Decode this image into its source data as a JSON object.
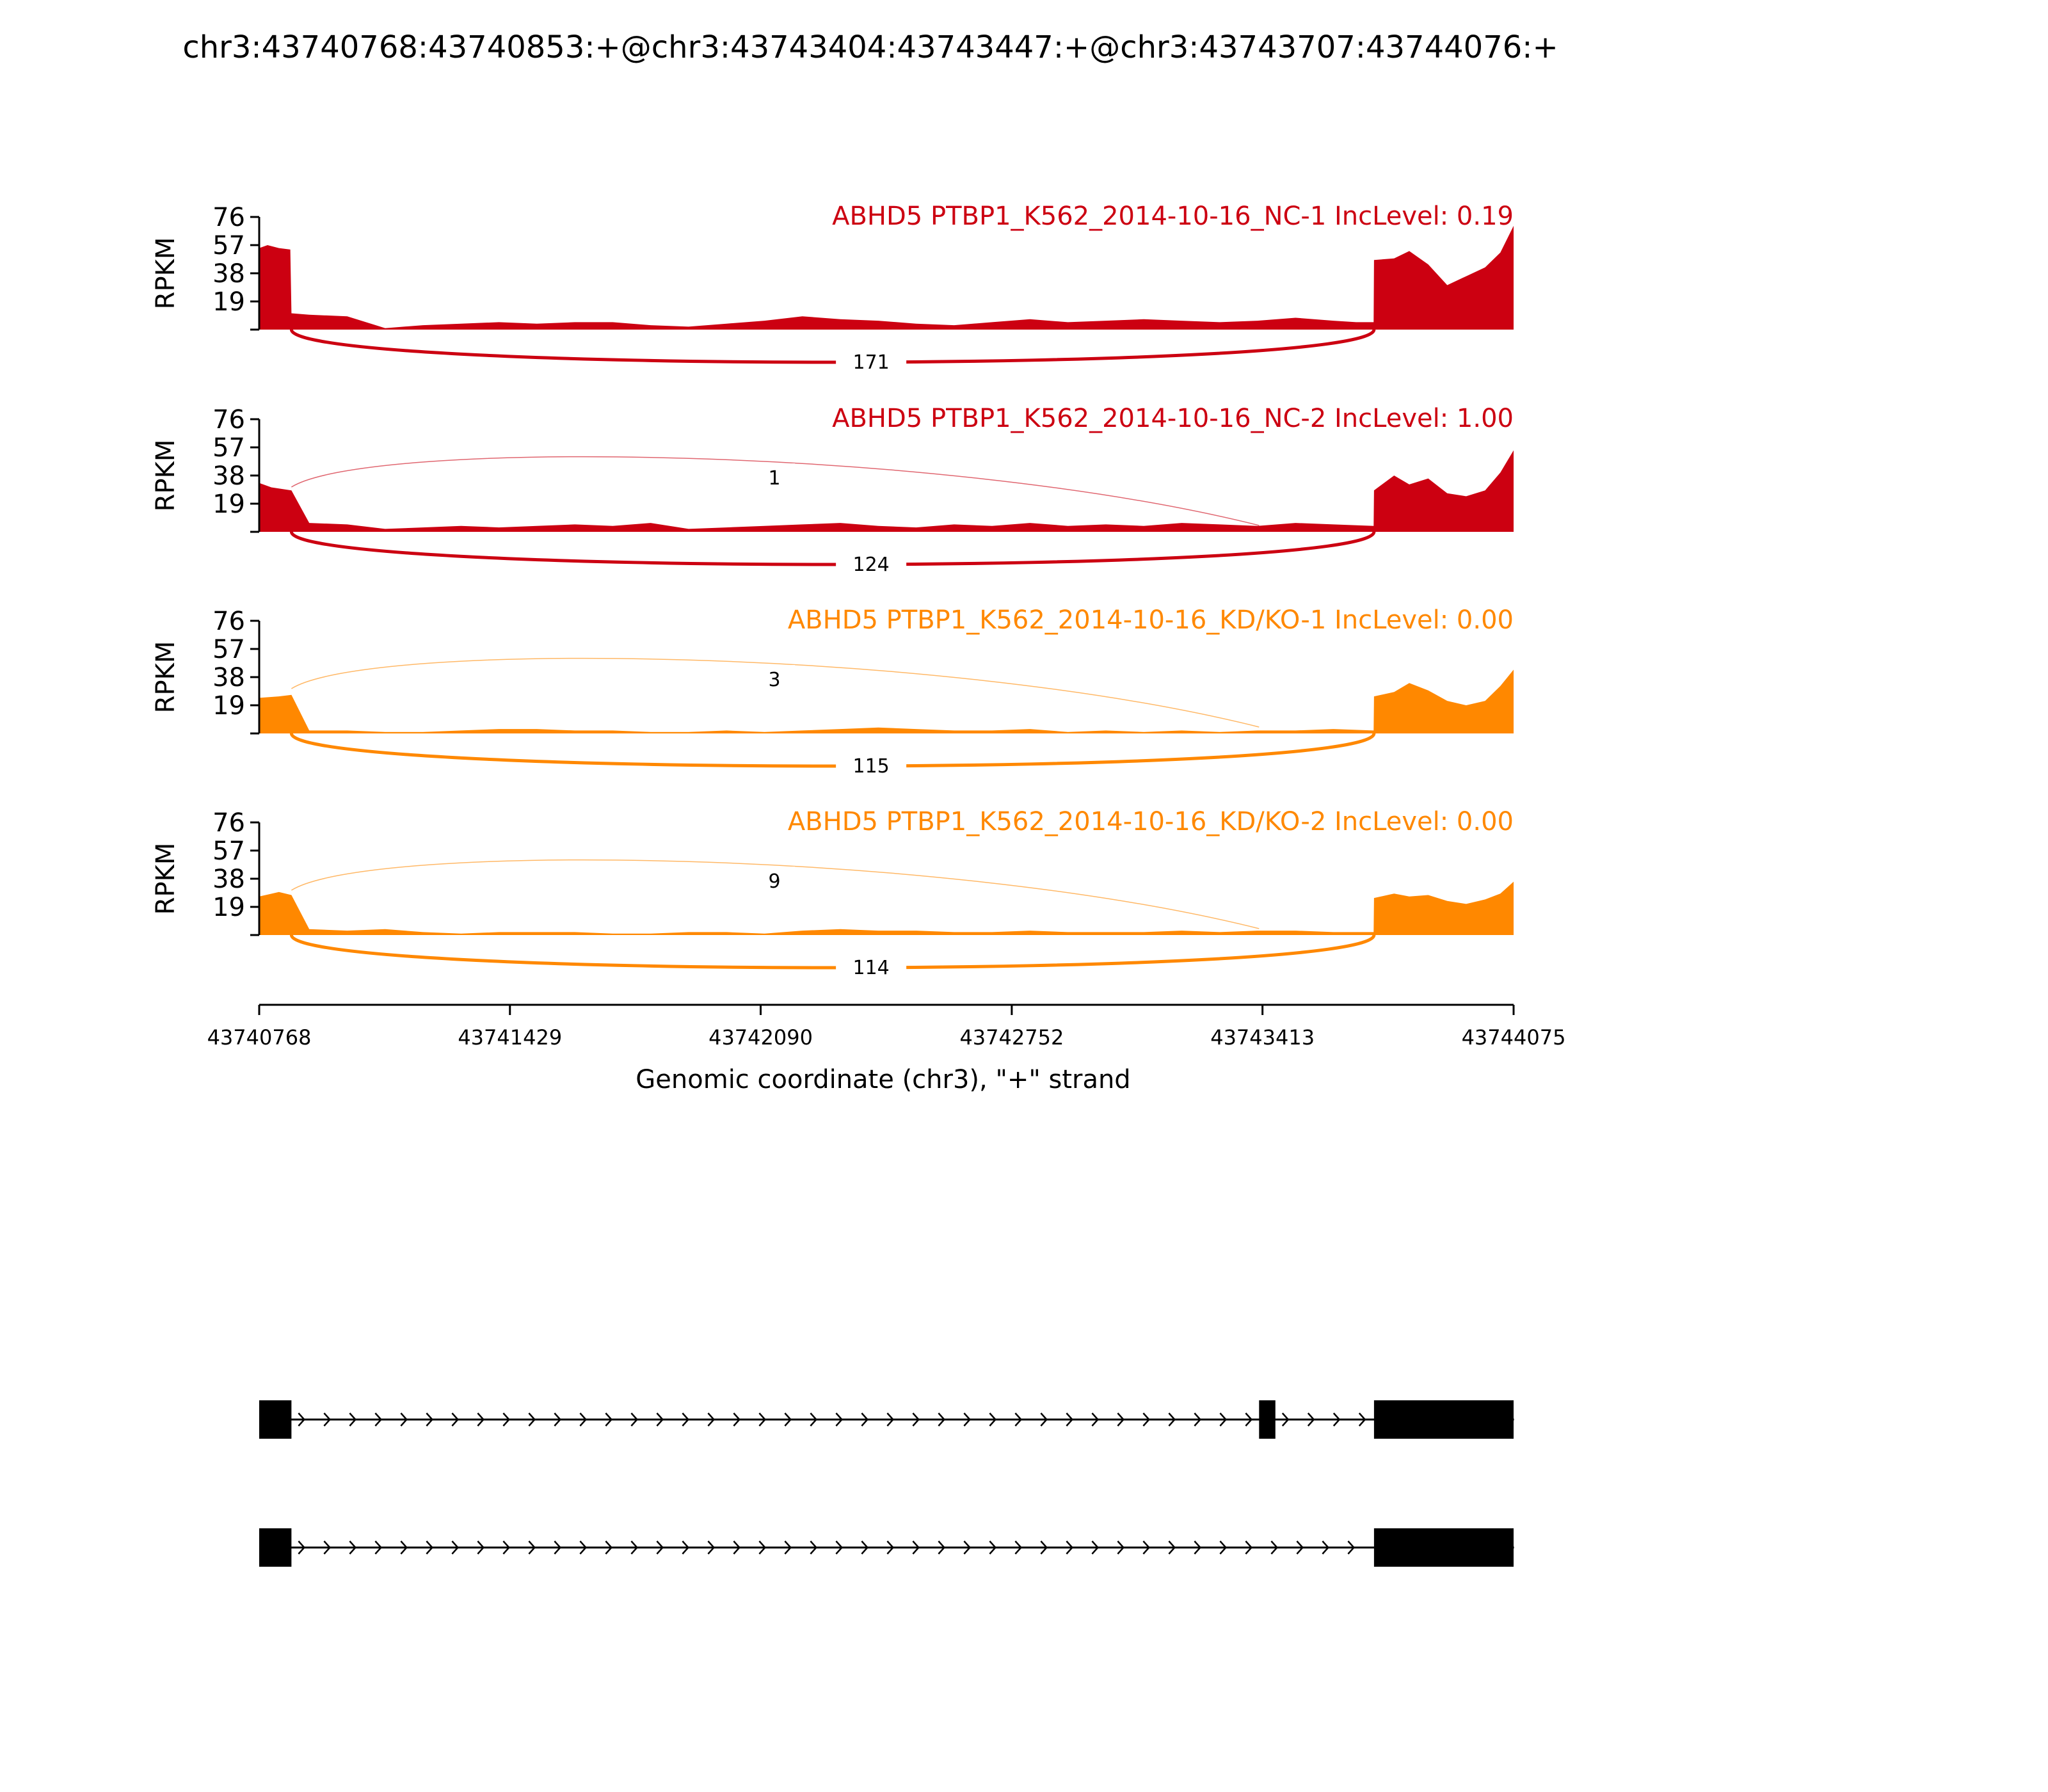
{
  "chart_data": {
    "type": "area",
    "title": "chr3:43740768:43740853:+@chr3:43743404:43743447:+@chr3:43743707:43744076:+",
    "xlabel": "Genomic coordinate (chr3), \"+\" strand",
    "ylabel": "RPKM",
    "xlim": [
      43740768,
      43744075
    ],
    "xticks": [
      43740768,
      43741429,
      43742090,
      43742752,
      43743413,
      43744075
    ],
    "ylim": [
      0,
      76
    ],
    "yticks": [
      19,
      38,
      57,
      76
    ],
    "exons": {
      "upstream": [
        43740768,
        43740853
      ],
      "skipped": [
        43743404,
        43743447
      ],
      "downstream": [
        43743707,
        43744076
      ]
    },
    "colors": {
      "nc": "#cc0011",
      "kd": "#ff8800",
      "gene": "#000000"
    },
    "series": [
      {
        "name": "ABHD5 PTBP1_K562_2014-10-16_NC-1 IncLevel: 0.19",
        "color": "#cc0011",
        "coverage": {
          "x": [
            43740768,
            43740790,
            43740820,
            43740850,
            43740853,
            43740900,
            43741000,
            43741100,
            43741200,
            43741300,
            43741400,
            43741500,
            43741600,
            43741700,
            43741800,
            43741900,
            43742000,
            43742100,
            43742200,
            43742300,
            43742400,
            43742500,
            43742600,
            43742700,
            43742800,
            43742900,
            43743000,
            43743100,
            43743200,
            43743300,
            43743400,
            43743500,
            43743600,
            43743660,
            43743706,
            43743707,
            43743760,
            43743800,
            43743850,
            43743900,
            43743950,
            43744000,
            43744040,
            43744075
          ],
          "y": [
            55,
            57,
            55,
            54,
            11,
            10,
            9,
            1,
            3,
            4,
            5,
            4,
            5,
            5,
            3,
            2,
            4,
            6,
            9,
            7,
            6,
            4,
            3,
            5,
            7,
            5,
            6,
            7,
            6,
            5,
            6,
            8,
            6,
            5,
            5,
            47,
            48,
            53,
            44,
            30,
            36,
            42,
            52,
            70
          ]
        },
        "junctions": [
          {
            "label": "171",
            "from": 43740853,
            "to": 43743707,
            "side": "below"
          }
        ]
      },
      {
        "name": "ABHD5 PTBP1_K562_2014-10-16_NC-2 IncLevel: 1.00",
        "color": "#cc0011",
        "coverage": {
          "x": [
            43740768,
            43740800,
            43740853,
            43740900,
            43741000,
            43741100,
            43741200,
            43741300,
            43741400,
            43741500,
            43741600,
            43741700,
            43741800,
            43741900,
            43742000,
            43742100,
            43742200,
            43742300,
            43742400,
            43742500,
            43742600,
            43742700,
            43742800,
            43742900,
            43743000,
            43743100,
            43743200,
            43743300,
            43743400,
            43743500,
            43743600,
            43743706,
            43743707,
            43743760,
            43743800,
            43743850,
            43743900,
            43743950,
            43744000,
            43744040,
            43744075
          ],
          "y": [
            33,
            30,
            28,
            6,
            5,
            2,
            3,
            4,
            3,
            4,
            5,
            4,
            6,
            2,
            3,
            4,
            5,
            6,
            4,
            3,
            5,
            4,
            6,
            4,
            5,
            4,
            6,
            5,
            4,
            6,
            5,
            4,
            28,
            38,
            32,
            36,
            26,
            24,
            28,
            40,
            55
          ]
        },
        "junctions": [
          {
            "label": "1",
            "from": 43740853,
            "to": 43743404,
            "side": "above"
          },
          {
            "label": "124",
            "from": 43740853,
            "to": 43743707,
            "side": "below"
          }
        ]
      },
      {
        "name": "ABHD5 PTBP1_K562_2014-10-16_KD/KO-1 IncLevel: 0.00",
        "color": "#ff8800",
        "coverage": {
          "x": [
            43740768,
            43740820,
            43740853,
            43740900,
            43741000,
            43741100,
            43741200,
            43741300,
            43741400,
            43741500,
            43741600,
            43741700,
            43741800,
            43741900,
            43742000,
            43742100,
            43742200,
            43742300,
            43742400,
            43742500,
            43742600,
            43742700,
            43742800,
            43742900,
            43743000,
            43743100,
            43743200,
            43743300,
            43743400,
            43743500,
            43743600,
            43743706,
            43743707,
            43743760,
            43743800,
            43743850,
            43743900,
            43743950,
            43744000,
            43744040,
            43744075
          ],
          "y": [
            24,
            25,
            26,
            2,
            2,
            1,
            1,
            2,
            3,
            3,
            2,
            2,
            1,
            1,
            2,
            1,
            2,
            3,
            4,
            3,
            2,
            2,
            3,
            1,
            2,
            1,
            2,
            1,
            2,
            2,
            3,
            2,
            25,
            28,
            34,
            29,
            22,
            19,
            22,
            32,
            43
          ]
        },
        "junctions": [
          {
            "label": "3",
            "from": 43740853,
            "to": 43743404,
            "side": "above"
          },
          {
            "label": "115",
            "from": 43740853,
            "to": 43743707,
            "side": "below"
          }
        ]
      },
      {
        "name": "ABHD5 PTBP1_K562_2014-10-16_KD/KO-2 IncLevel: 0.00",
        "color": "#ff8800",
        "coverage": {
          "x": [
            43740768,
            43740820,
            43740853,
            43740900,
            43741000,
            43741100,
            43741200,
            43741300,
            43741400,
            43741500,
            43741600,
            43741700,
            43741800,
            43741900,
            43742000,
            43742100,
            43742200,
            43742300,
            43742400,
            43742500,
            43742600,
            43742700,
            43742800,
            43742900,
            43743000,
            43743100,
            43743200,
            43743300,
            43743400,
            43743500,
            43743600,
            43743706,
            43743707,
            43743760,
            43743800,
            43743850,
            43743900,
            43743950,
            43744000,
            43744040,
            43744075
          ],
          "y": [
            26,
            29,
            27,
            4,
            3,
            4,
            2,
            1,
            2,
            2,
            2,
            1,
            1,
            2,
            2,
            1,
            3,
            4,
            3,
            3,
            2,
            2,
            3,
            2,
            2,
            2,
            3,
            2,
            3,
            3,
            2,
            2,
            25,
            28,
            26,
            27,
            23,
            21,
            24,
            28,
            36
          ]
        },
        "junctions": [
          {
            "label": "9",
            "from": 43740853,
            "to": 43743404,
            "side": "above"
          },
          {
            "label": "114",
            "from": 43740853,
            "to": 43743707,
            "side": "below"
          }
        ]
      }
    ]
  }
}
